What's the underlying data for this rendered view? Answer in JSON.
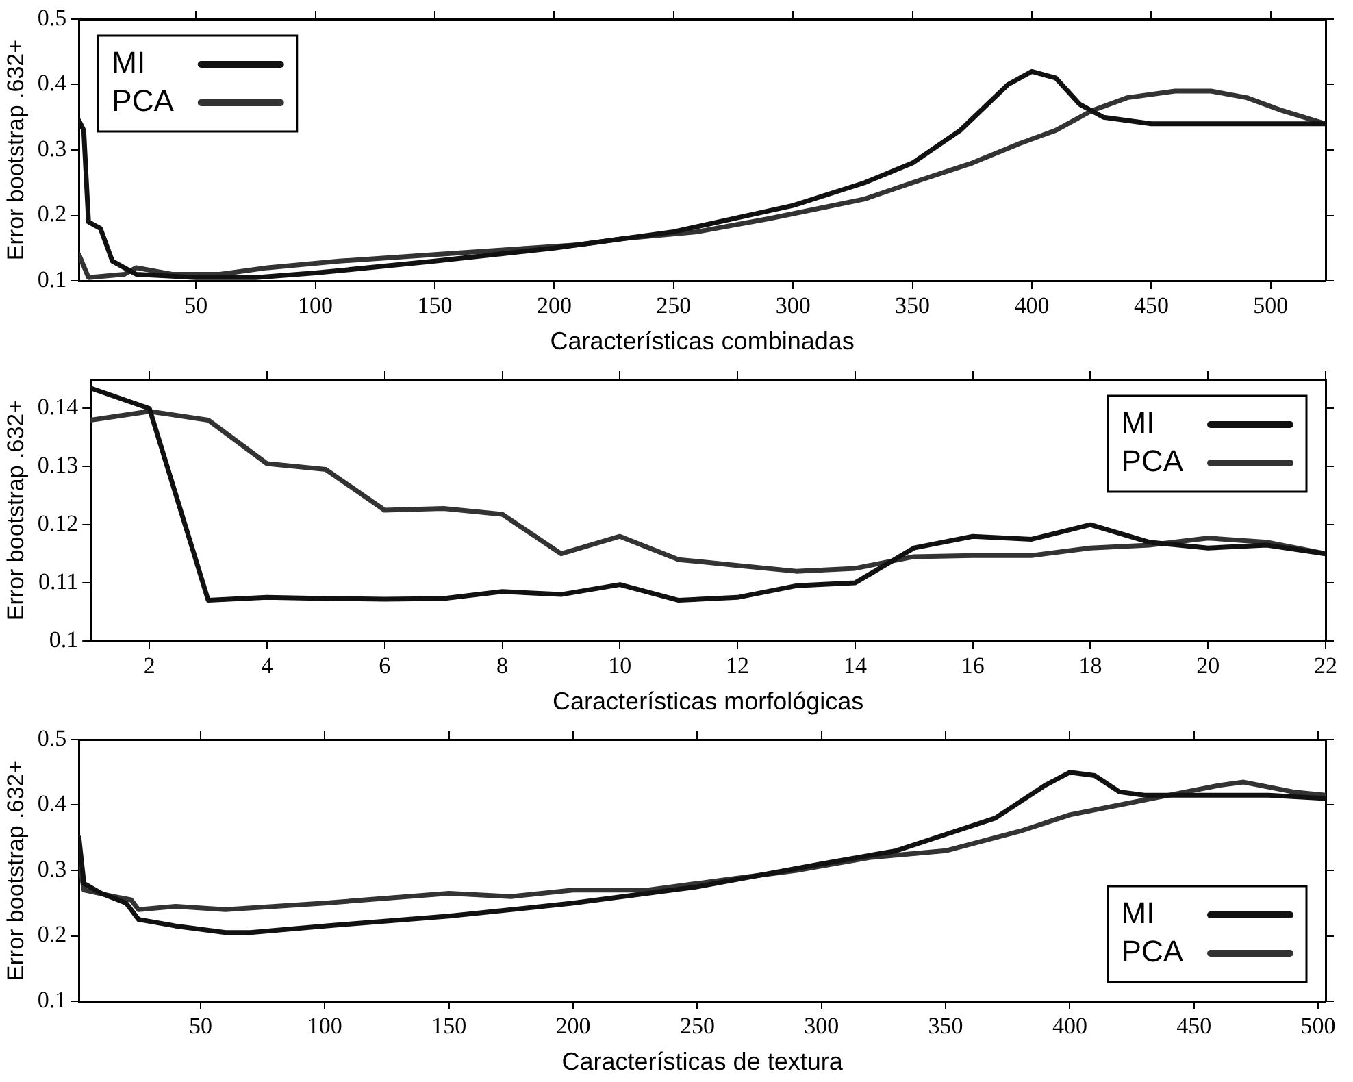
{
  "chart_data": [
    {
      "type": "line",
      "xlabel": "Características combinadas",
      "ylabel": "Error bootstrap .632+",
      "xlim": [
        1,
        523
      ],
      "xticks": [
        50,
        100,
        150,
        200,
        250,
        300,
        350,
        400,
        450,
        500
      ],
      "ylim": [
        0.1,
        0.5
      ],
      "yticks": [
        0.1,
        0.2,
        0.3,
        0.4,
        0.5
      ],
      "grid": false,
      "legend": "top left",
      "marker": "none",
      "line_style": "solid",
      "series": [
        {
          "name": "MI",
          "color": "#111111",
          "x": [
            1,
            3,
            5,
            10,
            15,
            25,
            50,
            75,
            100,
            150,
            200,
            250,
            300,
            330,
            350,
            370,
            390,
            400,
            410,
            420,
            430,
            450,
            500,
            523
          ],
          "values": [
            0.345,
            0.33,
            0.19,
            0.18,
            0.13,
            0.11,
            0.105,
            0.105,
            0.112,
            0.13,
            0.15,
            0.175,
            0.215,
            0.25,
            0.28,
            0.33,
            0.4,
            0.42,
            0.41,
            0.37,
            0.35,
            0.34,
            0.34,
            0.34
          ]
        },
        {
          "name": "PCA",
          "color": "#333333",
          "x": [
            1,
            5,
            20,
            25,
            40,
            60,
            80,
            110,
            150,
            190,
            210,
            230,
            260,
            290,
            310,
            330,
            350,
            375,
            395,
            410,
            425,
            440,
            460,
            475,
            490,
            505,
            523
          ],
          "values": [
            0.14,
            0.105,
            0.11,
            0.12,
            0.11,
            0.11,
            0.12,
            0.13,
            0.14,
            0.15,
            0.155,
            0.165,
            0.175,
            0.195,
            0.21,
            0.225,
            0.25,
            0.28,
            0.31,
            0.33,
            0.36,
            0.38,
            0.39,
            0.39,
            0.38,
            0.36,
            0.34
          ]
        }
      ]
    },
    {
      "type": "line",
      "xlabel": "Características morfológicas",
      "ylabel": "Error bootstrap .632+",
      "xlim": [
        1,
        22
      ],
      "xticks": [
        2,
        4,
        6,
        8,
        10,
        12,
        14,
        16,
        18,
        20,
        22
      ],
      "ylim": [
        0.1,
        0.145
      ],
      "yticks": [
        0.1,
        0.11,
        0.12,
        0.13,
        0.14
      ],
      "grid": false,
      "legend": "top right",
      "marker": "none",
      "line_style": "solid",
      "series": [
        {
          "name": "MI",
          "color": "#111111",
          "x": [
            1,
            2,
            3,
            4,
            5,
            6,
            7,
            8,
            9,
            10,
            11,
            12,
            13,
            14,
            15,
            16,
            17,
            18,
            19,
            20,
            21,
            22
          ],
          "values": [
            0.1435,
            0.14,
            0.107,
            0.1075,
            0.1073,
            0.1072,
            0.1073,
            0.1085,
            0.108,
            0.1097,
            0.107,
            0.1075,
            0.1095,
            0.11,
            0.116,
            0.118,
            0.1175,
            0.12,
            0.117,
            0.116,
            0.1165,
            0.115
          ]
        },
        {
          "name": "PCA",
          "color": "#333333",
          "x": [
            1,
            2,
            3,
            4,
            5,
            6,
            7,
            8,
            9,
            10,
            11,
            12,
            13,
            14,
            15,
            16,
            17,
            18,
            19,
            20,
            21,
            22
          ],
          "values": [
            0.138,
            0.1395,
            0.138,
            0.1305,
            0.1295,
            0.1225,
            0.1228,
            0.1218,
            0.115,
            0.118,
            0.114,
            0.113,
            0.112,
            0.1125,
            0.1145,
            0.1147,
            0.1147,
            0.116,
            0.1165,
            0.1177,
            0.117,
            0.115
          ]
        }
      ]
    },
    {
      "type": "line",
      "xlabel": "Características de textura",
      "ylabel": "Error bootstrap .632+",
      "xlim": [
        1,
        503
      ],
      "xticks": [
        50,
        100,
        150,
        200,
        250,
        300,
        350,
        400,
        450,
        500
      ],
      "ylim": [
        0.1,
        0.5
      ],
      "yticks": [
        0.1,
        0.2,
        0.3,
        0.4,
        0.5
      ],
      "grid": false,
      "legend": "bottom right",
      "marker": "none",
      "line_style": "solid",
      "series": [
        {
          "name": "MI",
          "color": "#111111",
          "x": [
            1,
            3,
            10,
            20,
            25,
            40,
            60,
            70,
            100,
            150,
            200,
            250,
            300,
            330,
            350,
            370,
            390,
            400,
            410,
            420,
            430,
            450,
            480,
            503
          ],
          "values": [
            0.35,
            0.28,
            0.265,
            0.25,
            0.225,
            0.215,
            0.205,
            0.205,
            0.215,
            0.23,
            0.25,
            0.275,
            0.31,
            0.33,
            0.355,
            0.38,
            0.43,
            0.45,
            0.445,
            0.42,
            0.415,
            0.415,
            0.415,
            0.41
          ]
        },
        {
          "name": "PCA",
          "color": "#333333",
          "x": [
            1,
            3,
            15,
            22,
            25,
            40,
            60,
            80,
            100,
            150,
            175,
            200,
            230,
            260,
            290,
            320,
            350,
            380,
            400,
            420,
            440,
            460,
            470,
            490,
            503
          ],
          "values": [
            0.32,
            0.27,
            0.26,
            0.255,
            0.24,
            0.245,
            0.24,
            0.245,
            0.25,
            0.265,
            0.26,
            0.27,
            0.27,
            0.285,
            0.3,
            0.32,
            0.33,
            0.36,
            0.385,
            0.4,
            0.415,
            0.43,
            0.435,
            0.42,
            0.415
          ]
        }
      ]
    }
  ]
}
